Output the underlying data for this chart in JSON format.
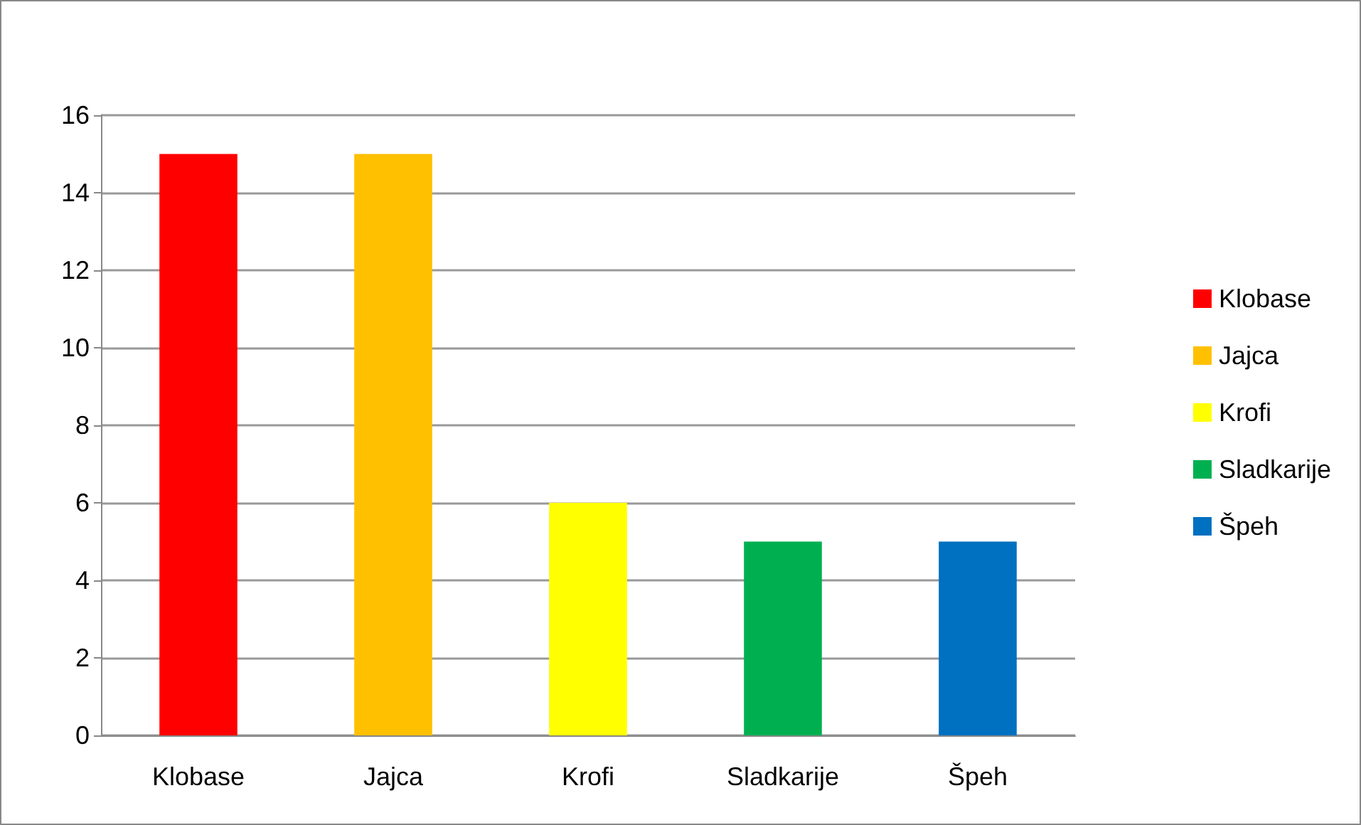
{
  "chart_data": {
    "type": "bar",
    "categories": [
      "Klobase",
      "Jajca",
      "Krofi",
      "Sladkarije",
      "Špeh"
    ],
    "series": [
      {
        "name": "Klobase",
        "color": "#ff0000",
        "values": [
          15,
          null,
          null,
          null,
          null
        ]
      },
      {
        "name": "Jajca",
        "color": "#ffc000",
        "values": [
          null,
          15,
          null,
          null,
          null
        ]
      },
      {
        "name": "Krofi",
        "color": "#ffff00",
        "values": [
          null,
          null,
          6,
          null,
          null
        ]
      },
      {
        "name": "Sladkarije",
        "color": "#00b050",
        "values": [
          null,
          null,
          null,
          5,
          null
        ]
      },
      {
        "name": "Špeh",
        "color": "#0070c0",
        "values": [
          null,
          null,
          null,
          null,
          5
        ]
      }
    ],
    "ylim": [
      0,
      16
    ],
    "yticks": [
      0,
      2,
      4,
      6,
      8,
      10,
      12,
      14,
      16
    ],
    "grid": "y",
    "legend": "right"
  }
}
